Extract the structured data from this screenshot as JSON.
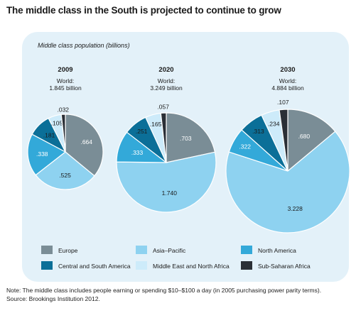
{
  "title": "The middle class in the South is projected to continue to grow",
  "notes": {
    "note": "Note: The middle class includes people earning or spending $10–$100 a day (in 2005 purchasing power parity terms).",
    "source": "Source: Brookings Institution 2012."
  },
  "chart_data": {
    "type": "pie",
    "subtitle": "Middle class population (billions)",
    "series_names": [
      "Europe",
      "Asia–Pacific",
      "North America",
      "Central and South America",
      "Middle East and North Africa",
      "Sub-Saharan Africa"
    ],
    "colors": [
      "#7a8d96",
      "#8ed2f0",
      "#33a9d9",
      "#0b6f98",
      "#cdebfa",
      "#2a2f36"
    ],
    "pies": [
      {
        "year": "2009",
        "world_label": "World:",
        "world_value": "1.845 billion",
        "total": 1.845,
        "values": [
          0.664,
          0.525,
          0.338,
          0.181,
          0.105,
          0.032
        ],
        "labels": [
          ".664",
          ".525",
          ".338",
          ".181",
          ".105",
          ".032"
        ]
      },
      {
        "year": "2020",
        "world_label": "World:",
        "world_value": "3.249 billion",
        "total": 3.249,
        "values": [
          0.703,
          1.74,
          0.333,
          0.251,
          0.165,
          0.057
        ],
        "labels": [
          ".703",
          "1.740",
          ".333",
          ".251",
          ".165",
          ".057"
        ]
      },
      {
        "year": "2030",
        "world_label": "World:",
        "world_value": "4.884 billion",
        "total": 4.884,
        "values": [
          0.68,
          3.228,
          0.322,
          0.313,
          0.234,
          0.107
        ],
        "labels": [
          ".680",
          "3.228",
          ".322",
          ".313",
          ".234",
          ".107"
        ]
      }
    ],
    "legend": [
      {
        "label": "Europe",
        "color": "#7a8d96"
      },
      {
        "label": "Asia–Pacific",
        "color": "#8ed2f0"
      },
      {
        "label": "North America",
        "color": "#33a9d9"
      },
      {
        "label": "Central and South America",
        "color": "#0b6f98"
      },
      {
        "label": "Middle East and North Africa",
        "color": "#cdebfa"
      },
      {
        "label": "Sub-Saharan Africa",
        "color": "#2a2f36"
      }
    ]
  }
}
